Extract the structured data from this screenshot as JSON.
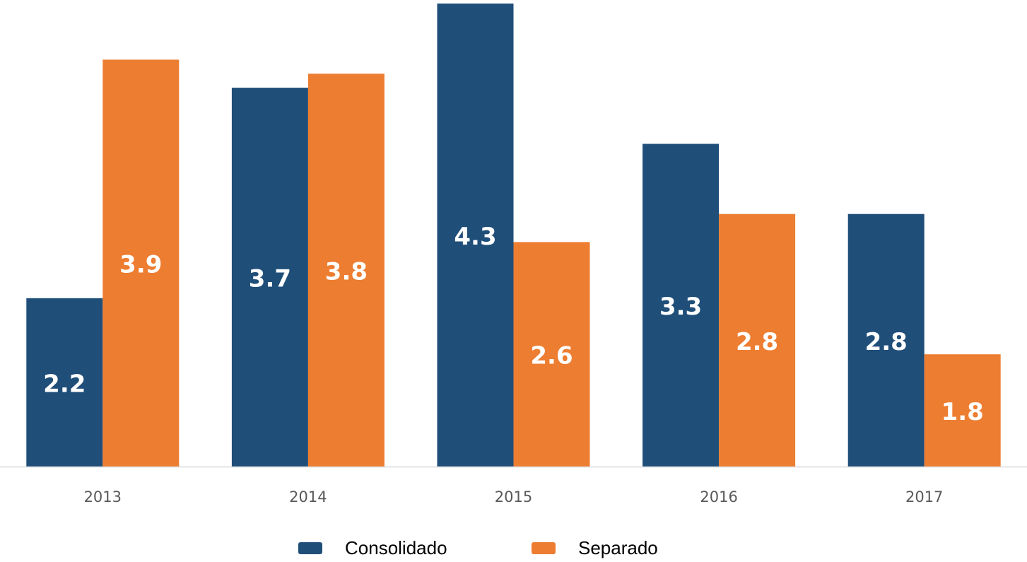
{
  "chart_data": {
    "type": "bar",
    "categories": [
      "2013",
      "2014",
      "2015",
      "2016",
      "2017"
    ],
    "series": [
      {
        "name": "Consolidado",
        "color": "#1f4e79",
        "values": [
          2.2,
          3.7,
          4.3,
          3.3,
          2.8
        ]
      },
      {
        "name": "Separado",
        "color": "#ed7d31",
        "values": [
          3.9,
          3.8,
          2.6,
          2.8,
          1.8
        ]
      }
    ],
    "ylim": [
      1,
      4.3
    ]
  }
}
